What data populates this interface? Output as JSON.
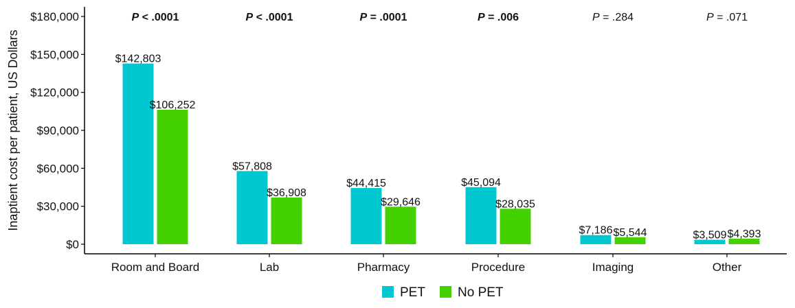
{
  "chart_data": {
    "type": "bar",
    "title": "",
    "xlabel": "",
    "ylabel": "Inaptient cost per patient, US Dollars",
    "ylim": [
      0,
      180000
    ],
    "yticks": [
      0,
      30000,
      60000,
      90000,
      120000,
      150000,
      180000
    ],
    "ytick_labels": [
      "$0",
      "$30,000",
      "$60,000",
      "$90,000",
      "$120,000",
      "$150,000",
      "$180,000"
    ],
    "categories": [
      "Room and Board",
      "Lab",
      "Pharmacy",
      "Procedure",
      "Imaging",
      "Other"
    ],
    "series": [
      {
        "name": "PET",
        "color": "#00c8d0",
        "values": [
          142803,
          57808,
          44415,
          45094,
          7186,
          3509
        ],
        "labels": [
          "$142,803",
          "$57,808",
          "$44,415",
          "$45,094",
          "$7,186",
          "$3,509"
        ]
      },
      {
        "name": "No PET",
        "color": "#44d100",
        "values": [
          106252,
          36908,
          29646,
          28035,
          5544,
          4393
        ],
        "labels": [
          "$106,252",
          "$36,908",
          "$29,646",
          "$28,035",
          "$5,544",
          "$4,393"
        ]
      }
    ],
    "p_values": [
      {
        "text": "< .0001",
        "bold": true
      },
      {
        "text": "< .0001",
        "bold": true
      },
      {
        "text": "= .0001",
        "bold": true
      },
      {
        "text": "= .006",
        "bold": true
      },
      {
        "text": "= .284",
        "bold": false
      },
      {
        "text": "= .071",
        "bold": false
      }
    ],
    "p_symbol": "P",
    "legend_position": "bottom",
    "grid": false
  }
}
